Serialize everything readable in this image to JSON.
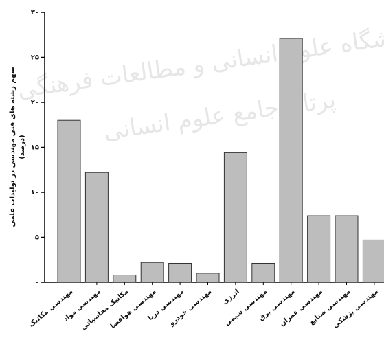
{
  "chart_data": {
    "type": "bar",
    "y_label": [
      "سهم رشته های فنی مهندسی در تولیدات علمی",
      "(درصد)"
    ],
    "watermark": [
      "پژوهشگاه علوم انسانی و مطالعات فرهنگی",
      "پرتال جامع علوم انسانی"
    ],
    "categories": [
      "مهندسی مکانیک",
      "مهندسی مواد",
      "مکانیک محاسباتی",
      "مهندسی هوافضا",
      "مهندسی دریا",
      "مهندسی خودرو",
      "انرژی",
      "مهندسی شیمی",
      "مهندسی برق",
      "مهندسی عمران",
      "مهندسی صنایع",
      "مهندسی پزشکی"
    ],
    "values": [
      18,
      12.2,
      0.8,
      2.2,
      2.1,
      1.0,
      14.4,
      2.1,
      27.1,
      7.4,
      7.4,
      4.7
    ],
    "color": "#bdbdbd",
    "ylim": [
      0,
      30
    ],
    "yticks": [
      {
        "value": 0,
        "label": "۰"
      },
      {
        "value": 5,
        "label": "۵"
      },
      {
        "value": 10,
        "label": "۱۰"
      },
      {
        "value": 15,
        "label": "۱۵"
      },
      {
        "value": 20,
        "label": "۲۰"
      },
      {
        "value": 25,
        "label": "۲۵"
      },
      {
        "value": 30,
        "label": "۳۰"
      }
    ],
    "grid": false
  }
}
